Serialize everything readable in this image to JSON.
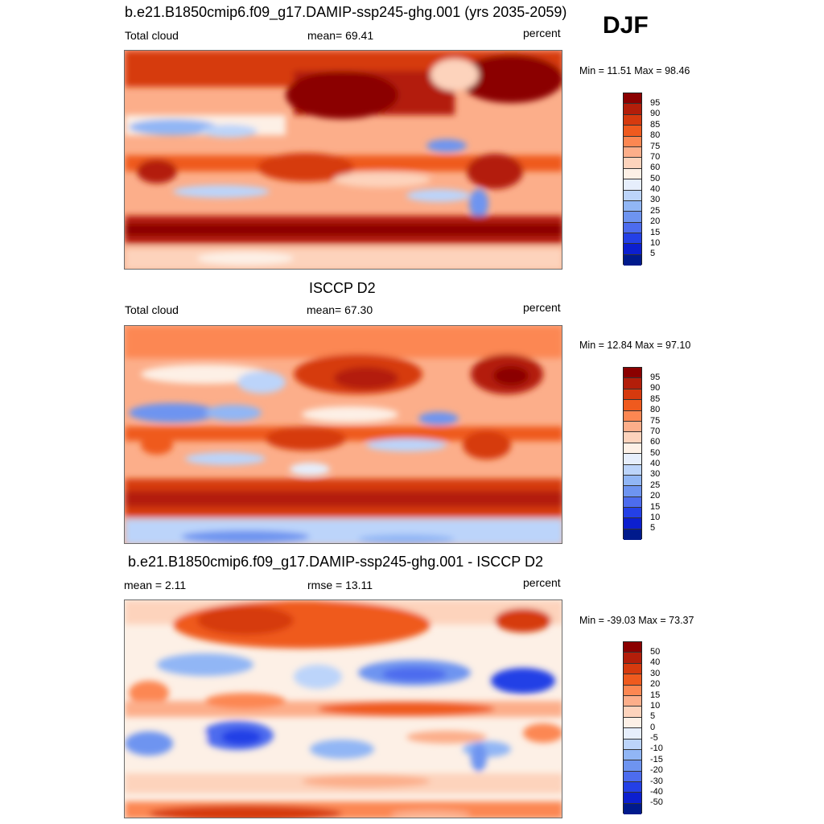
{
  "season": "DJF",
  "panels": [
    {
      "title": "b.e21.B1850cmip6.f09_g17.DAMIP-ssp245-ghg.001 (yrs 2035-2059)",
      "left_label": "Total cloud",
      "center_label": "mean=  69.41",
      "right_label": "percent",
      "minmax": "Min =  11.51 Max =  98.46",
      "colorbar_ticks": [
        "95",
        "90",
        "85",
        "80",
        "75",
        "70",
        "60",
        "50",
        "40",
        "30",
        "25",
        "20",
        "15",
        "10",
        "5"
      ],
      "colorbar_colors": [
        "#8b0000",
        "#b31e0a",
        "#d63a0e",
        "#ef5a1e",
        "#fc8752",
        "#fcae8a",
        "#fdd3bc",
        "#fdf0e6",
        "#e6eefc",
        "#bcd4fa",
        "#91b6f5",
        "#6e94f0",
        "#4d6cee",
        "#2440e6",
        "#0c1fcf",
        "#001a8c"
      ]
    },
    {
      "title": "ISCCP D2",
      "left_label": "Total cloud",
      "center_label": "mean=  67.30",
      "right_label": "percent",
      "minmax": "Min =  12.84 Max =  97.10",
      "colorbar_ticks": [
        "95",
        "90",
        "85",
        "80",
        "75",
        "70",
        "60",
        "50",
        "40",
        "30",
        "25",
        "20",
        "15",
        "10",
        "5"
      ],
      "colorbar_colors": [
        "#8b0000",
        "#b31e0a",
        "#d63a0e",
        "#ef5a1e",
        "#fc8752",
        "#fcae8a",
        "#fdd3bc",
        "#fdf0e6",
        "#e6eefc",
        "#bcd4fa",
        "#91b6f5",
        "#6e94f0",
        "#4d6cee",
        "#2440e6",
        "#0c1fcf",
        "#001a8c"
      ]
    },
    {
      "title": "b.e21.B1850cmip6.f09_g17.DAMIP-ssp245-ghg.001 - ISCCP D2",
      "left_label": "mean =   2.11",
      "center_label": "rmse =  13.11",
      "right_label": "percent",
      "minmax": "Min = -39.03 Max =  73.37",
      "colorbar_ticks": [
        "50",
        "40",
        "30",
        "20",
        "15",
        "10",
        "5",
        "0",
        "-5",
        "-10",
        "-15",
        "-20",
        "-30",
        "-40",
        "-50"
      ],
      "colorbar_colors": [
        "#8b0000",
        "#b31e0a",
        "#d63a0e",
        "#ef5a1e",
        "#fc8752",
        "#fcae8a",
        "#fdd3bc",
        "#fdf0e6",
        "#e6eefc",
        "#bcd4fa",
        "#91b6f5",
        "#6e94f0",
        "#4d6cee",
        "#2440e6",
        "#0c1fcf",
        "#001a8c"
      ]
    }
  ]
}
